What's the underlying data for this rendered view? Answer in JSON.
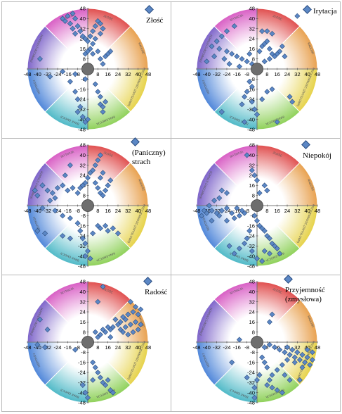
{
  "chart_data": [
    {
      "type": "scatter",
      "series_name": "Złość",
      "ticks": [
        "-48",
        "-40",
        "-32",
        "-24",
        "-16",
        "-8",
        "8",
        "16",
        "24",
        "32",
        "40",
        "48"
      ],
      "yticks": [
        "48",
        "40",
        "32",
        "24",
        "16",
        "8",
        "-8",
        "-16",
        "-24",
        "-32",
        "-40",
        "-48"
      ],
      "xlim": [
        -48,
        48
      ],
      "ylim": [
        -48,
        48
      ],
      "segments": [
        "ZŁOŚĆ",
        "RADOŚĆ",
        "PRZYJEMNOŚĆ (ZMYSŁOWA)",
        "INNA EMOCJA",
        "BRAK EMOCJI",
        "NIEPOKÓJ",
        "(PANICZNY) STRACH",
        "IRYTACJA"
      ],
      "points": [
        [
          -12,
          44
        ],
        [
          -16,
          42
        ],
        [
          -20,
          40
        ],
        [
          -18,
          38
        ],
        [
          -14,
          36
        ],
        [
          -10,
          40
        ],
        [
          -8,
          34
        ],
        [
          -12,
          32
        ],
        [
          -6,
          30
        ],
        [
          -10,
          28
        ],
        [
          -4,
          26
        ],
        [
          -2,
          24
        ],
        [
          0,
          22
        ],
        [
          2,
          26
        ],
        [
          4,
          30
        ],
        [
          6,
          34
        ],
        [
          8,
          38
        ],
        [
          10,
          36
        ],
        [
          12,
          32
        ],
        [
          10,
          28
        ],
        [
          6,
          24
        ],
        [
          4,
          20
        ],
        [
          2,
          16
        ],
        [
          0,
          14
        ],
        [
          -2,
          12
        ],
        [
          4,
          12
        ],
        [
          8,
          14
        ],
        [
          10,
          8
        ],
        [
          14,
          10
        ],
        [
          16,
          12
        ],
        [
          18,
          14
        ],
        [
          12,
          4
        ],
        [
          -38,
          8
        ],
        [
          -20,
          -2
        ],
        [
          -10,
          -4
        ],
        [
          -30,
          -6
        ],
        [
          -14,
          -10
        ],
        [
          -2,
          -8
        ],
        [
          6,
          -12
        ],
        [
          8,
          -18
        ],
        [
          10,
          -22
        ],
        [
          10,
          -28
        ],
        [
          12,
          -30
        ],
        [
          12,
          -34
        ],
        [
          14,
          -26
        ],
        [
          -10,
          -18
        ],
        [
          -8,
          -24
        ],
        [
          -6,
          -30
        ],
        [
          -8,
          -34
        ],
        [
          -4,
          -38
        ],
        [
          -2,
          -42
        ],
        [
          0,
          -40
        ]
      ]
    },
    {
      "type": "scatter",
      "series_name": "Irytacja",
      "ticks": [
        "-48",
        "-40",
        "-32",
        "-24",
        "-16",
        "-8",
        "8",
        "16",
        "24",
        "32",
        "40",
        "48"
      ],
      "yticks": [
        "48",
        "40",
        "32",
        "24",
        "16",
        "8",
        "-8",
        "-16",
        "-24",
        "-32",
        "-40",
        "-48"
      ],
      "xlim": [
        -48,
        48
      ],
      "ylim": [
        -48,
        48
      ],
      "segments": [
        "ZŁOŚĆ",
        "RADOŚĆ",
        "PRZYJEMNOŚĆ (ZMYSŁOWA)",
        "INNA EMOCJA",
        "BRAK EMOCJI",
        "NIEPOKÓJ",
        "(PANICZNY) STRACH",
        "IRYTACJA"
      ],
      "points": [
        [
          32,
          42
        ],
        [
          -18,
          34
        ],
        [
          -24,
          30
        ],
        [
          -28,
          26
        ],
        [
          -32,
          22
        ],
        [
          -36,
          18
        ],
        [
          -30,
          16
        ],
        [
          -24,
          14
        ],
        [
          -20,
          12
        ],
        [
          -16,
          10
        ],
        [
          -12,
          8
        ],
        [
          -8,
          6
        ],
        [
          -4,
          4
        ],
        [
          -26,
          8
        ],
        [
          -34,
          10
        ],
        [
          -40,
          6
        ],
        [
          -22,
          4
        ],
        [
          -14,
          2
        ],
        [
          -6,
          12
        ],
        [
          2,
          14
        ],
        [
          4,
          18
        ],
        [
          6,
          20
        ],
        [
          8,
          22
        ],
        [
          10,
          16
        ],
        [
          12,
          12
        ],
        [
          14,
          10
        ],
        [
          16,
          12
        ],
        [
          18,
          14
        ],
        [
          20,
          18
        ],
        [
          22,
          10
        ],
        [
          10,
          8
        ],
        [
          6,
          6
        ],
        [
          4,
          30
        ],
        [
          8,
          30
        ],
        [
          12,
          28
        ],
        [
          -6,
          -10
        ],
        [
          -4,
          -14
        ],
        [
          -8,
          -18
        ],
        [
          -10,
          -22
        ],
        [
          -12,
          -28
        ],
        [
          -4,
          -26
        ],
        [
          -2,
          -32
        ],
        [
          0,
          -36
        ],
        [
          4,
          -24
        ],
        [
          8,
          -18
        ],
        [
          12,
          -16
        ],
        [
          26,
          -22
        ],
        [
          28,
          -26
        ],
        [
          16,
          -42
        ],
        [
          -28,
          -34
        ],
        [
          -10,
          -42
        ]
      ]
    },
    {
      "type": "scatter",
      "series_name": "(Paniczny) strach",
      "ticks": [
        "-48",
        "-40",
        "-32",
        "-24",
        "-16",
        "-8",
        "8",
        "16",
        "24",
        "32",
        "40",
        "48"
      ],
      "yticks": [
        "48",
        "40",
        "32",
        "24",
        "16",
        "8",
        "-8",
        "-16",
        "-24",
        "-32",
        "-40",
        "-48"
      ],
      "xlim": [
        -48,
        48
      ],
      "ylim": [
        -48,
        48
      ],
      "segments": [
        "ZŁOŚĆ",
        "RADOŚĆ",
        "PRZYJEMNOŚĆ (ZMYSŁOWA)",
        "INNA EMOCJA",
        "BRAK EMOCJI",
        "NIEPOKÓJ",
        "(PANICZNY) STRACH",
        "IRYTACJA"
      ],
      "points": [
        [
          -42,
          12
        ],
        [
          -36,
          16
        ],
        [
          -32,
          12
        ],
        [
          -28,
          10
        ],
        [
          -24,
          14
        ],
        [
          -20,
          16
        ],
        [
          -16,
          12
        ],
        [
          -12,
          14
        ],
        [
          -8,
          10
        ],
        [
          -6,
          14
        ],
        [
          -4,
          16
        ],
        [
          -2,
          18
        ],
        [
          0,
          22
        ],
        [
          2,
          26
        ],
        [
          4,
          28
        ],
        [
          6,
          32
        ],
        [
          8,
          36
        ],
        [
          10,
          40
        ],
        [
          6,
          18
        ],
        [
          8,
          14
        ],
        [
          10,
          10
        ],
        [
          12,
          8
        ],
        [
          14,
          12
        ],
        [
          16,
          16
        ],
        [
          18,
          20
        ],
        [
          10,
          22
        ],
        [
          12,
          26
        ],
        [
          -14,
          32
        ],
        [
          -18,
          24
        ],
        [
          -26,
          6
        ],
        [
          -30,
          4
        ],
        [
          -40,
          8
        ],
        [
          -36,
          -2
        ],
        [
          -26,
          -4
        ],
        [
          -20,
          -8
        ],
        [
          -14,
          -10
        ],
        [
          -8,
          -14
        ],
        [
          -6,
          -20
        ],
        [
          -4,
          -26
        ],
        [
          -2,
          -30
        ],
        [
          0,
          -36
        ],
        [
          -2,
          -40
        ],
        [
          2,
          -42
        ],
        [
          4,
          -22
        ],
        [
          8,
          -16
        ],
        [
          10,
          -18
        ],
        [
          14,
          -16
        ],
        [
          16,
          -20
        ],
        [
          20,
          -18
        ],
        [
          24,
          -22
        ],
        [
          -14,
          -26
        ],
        [
          -20,
          -24
        ],
        [
          -34,
          -22
        ],
        [
          -40,
          -20
        ]
      ]
    },
    {
      "type": "scatter",
      "series_name": "Niepokój",
      "ticks": [
        "-48",
        "-40",
        "-32",
        "-24",
        "-16",
        "-8",
        "8",
        "16",
        "24",
        "32",
        "40",
        "48"
      ],
      "yticks": [
        "48",
        "40",
        "32",
        "24",
        "16",
        "8",
        "-8",
        "-16",
        "-24",
        "-32",
        "-40",
        "-48"
      ],
      "xlim": [
        -48,
        48
      ],
      "ylim": [
        -48,
        48
      ],
      "segments": [
        "ZŁOŚĆ",
        "RADOŚĆ",
        "PRZYJEMNOŚĆ (ZMYSŁOWA)",
        "INNA EMOCJA",
        "BRAK EMOCJI",
        "NIEPOKÓJ",
        "(PANICZNY) STRACH",
        "IRYTACJA"
      ],
      "points": [
        [
          -8,
          40
        ],
        [
          -4,
          28
        ],
        [
          -2,
          24
        ],
        [
          0,
          20
        ],
        [
          6,
          16
        ],
        [
          8,
          12
        ],
        [
          2,
          10
        ],
        [
          -28,
          12
        ],
        [
          -24,
          10
        ],
        [
          -30,
          6
        ],
        [
          -34,
          4
        ],
        [
          -38,
          0
        ],
        [
          -42,
          -4
        ],
        [
          -44,
          -8
        ],
        [
          -40,
          -6
        ],
        [
          -36,
          -4
        ],
        [
          -32,
          -6
        ],
        [
          -28,
          -4
        ],
        [
          -24,
          -2
        ],
        [
          -20,
          -6
        ],
        [
          -16,
          -2
        ],
        [
          -12,
          -4
        ],
        [
          -10,
          -6
        ],
        [
          -14,
          -8
        ],
        [
          -18,
          -10
        ],
        [
          -24,
          -12
        ],
        [
          -30,
          -8
        ],
        [
          -36,
          -12
        ],
        [
          -2,
          -8
        ],
        [
          0,
          -12
        ],
        [
          2,
          -16
        ],
        [
          4,
          -18
        ],
        [
          6,
          -20
        ],
        [
          8,
          -24
        ],
        [
          10,
          -26
        ],
        [
          12,
          -30
        ],
        [
          14,
          -32
        ],
        [
          16,
          -34
        ],
        [
          18,
          -38
        ],
        [
          10,
          -38
        ],
        [
          6,
          -36
        ],
        [
          -6,
          -20
        ],
        [
          -8,
          -26
        ],
        [
          -10,
          -30
        ],
        [
          -14,
          -34
        ],
        [
          -18,
          -38
        ],
        [
          -4,
          -36
        ],
        [
          0,
          -42
        ],
        [
          4,
          -44
        ],
        [
          -22,
          -32
        ]
      ]
    },
    {
      "type": "scatter",
      "series_name": "Radość",
      "ticks": [
        "-48",
        "-40",
        "-32",
        "-24",
        "-16",
        "-8",
        "8",
        "16",
        "24",
        "32",
        "40",
        "48"
      ],
      "yticks": [
        "48",
        "40",
        "32",
        "24",
        "16",
        "8",
        "-8",
        "-16",
        "-24",
        "-32",
        "-40",
        "-48"
      ],
      "xlim": [
        -48,
        48
      ],
      "ylim": [
        -48,
        48
      ],
      "segments": [
        "ZŁOŚĆ",
        "RADOŚĆ",
        "PRZYJEMNOŚĆ (ZMYSŁOWA)",
        "INNA EMOCJA",
        "BRAK EMOCJI",
        "NIEPOKÓJ",
        "(PANICZNY) STRACH",
        "IRYTACJA"
      ],
      "points": [
        [
          12,
          44
        ],
        [
          8,
          32
        ],
        [
          34,
          32
        ],
        [
          38,
          28
        ],
        [
          42,
          26
        ],
        [
          40,
          22
        ],
        [
          36,
          24
        ],
        [
          32,
          22
        ],
        [
          30,
          18
        ],
        [
          28,
          20
        ],
        [
          26,
          16
        ],
        [
          24,
          14
        ],
        [
          22,
          18
        ],
        [
          20,
          12
        ],
        [
          18,
          10
        ],
        [
          16,
          12
        ],
        [
          14,
          8
        ],
        [
          12,
          10
        ],
        [
          10,
          6
        ],
        [
          8,
          4
        ],
        [
          6,
          8
        ],
        [
          26,
          10
        ],
        [
          30,
          12
        ],
        [
          34,
          14
        ],
        [
          38,
          16
        ],
        [
          40,
          10
        ],
        [
          42,
          14
        ],
        [
          36,
          8
        ],
        [
          32,
          6
        ],
        [
          28,
          8
        ],
        [
          18,
          4
        ],
        [
          -38,
          18
        ],
        [
          -32,
          10
        ],
        [
          -40,
          -2
        ],
        [
          -34,
          -4
        ],
        [
          -10,
          -6
        ],
        [
          4,
          -16
        ],
        [
          6,
          -20
        ],
        [
          8,
          -24
        ],
        [
          10,
          -28
        ],
        [
          12,
          -32
        ],
        [
          14,
          -34
        ],
        [
          16,
          -30
        ],
        [
          18,
          -38
        ],
        [
          20,
          -40
        ],
        [
          -4,
          -34
        ],
        [
          -2,
          -40
        ],
        [
          0,
          -44
        ],
        [
          4,
          -30
        ]
      ]
    },
    {
      "type": "scatter",
      "series_name": "Przyjemność (zmysłowa)",
      "ticks": [
        "-48",
        "-40",
        "-32",
        "-24",
        "-16",
        "-8",
        "8",
        "16",
        "24",
        "32",
        "40",
        "48"
      ],
      "yticks": [
        "48",
        "40",
        "32",
        "24",
        "16",
        "8",
        "-8",
        "-16",
        "-24",
        "-32",
        "-40",
        "-48"
      ],
      "xlim": [
        -48,
        48
      ],
      "ylim": [
        -48,
        48
      ],
      "segments": [
        "ZŁOŚĆ",
        "RADOŚĆ",
        "PRZYJEMNOŚĆ (ZMYSŁOWA)",
        "INNA EMOCJA",
        "BRAK EMOCJI",
        "NIEPOKÓJ",
        "(PANICZNY) STRACH",
        "IRYTACJA"
      ],
      "points": [
        [
          12,
          22
        ],
        [
          10,
          16
        ],
        [
          -14,
          2
        ],
        [
          -20,
          -16
        ],
        [
          24,
          -4
        ],
        [
          28,
          -6
        ],
        [
          32,
          -8
        ],
        [
          36,
          -10
        ],
        [
          40,
          -12
        ],
        [
          44,
          -14
        ],
        [
          42,
          -18
        ],
        [
          38,
          -16
        ],
        [
          34,
          -14
        ],
        [
          30,
          -12
        ],
        [
          26,
          -10
        ],
        [
          22,
          -8
        ],
        [
          18,
          -6
        ],
        [
          14,
          -4
        ],
        [
          10,
          -2
        ],
        [
          6,
          -4
        ],
        [
          40,
          -6
        ],
        [
          44,
          -8
        ],
        [
          36,
          -20
        ],
        [
          30,
          -16
        ],
        [
          24,
          -14
        ],
        [
          20,
          -18
        ],
        [
          16,
          -22
        ],
        [
          12,
          -26
        ],
        [
          10,
          -30
        ],
        [
          8,
          -34
        ],
        [
          12,
          -36
        ],
        [
          16,
          -38
        ],
        [
          20,
          -40
        ],
        [
          4,
          -12
        ],
        [
          6,
          -16
        ],
        [
          8,
          -20
        ],
        [
          22,
          -26
        ],
        [
          26,
          -30
        ],
        [
          2,
          -26
        ],
        [
          0,
          -30
        ],
        [
          -2,
          -36
        ],
        [
          -8,
          -28
        ],
        [
          -2,
          -44
        ],
        [
          34,
          -30
        ]
      ]
    }
  ]
}
